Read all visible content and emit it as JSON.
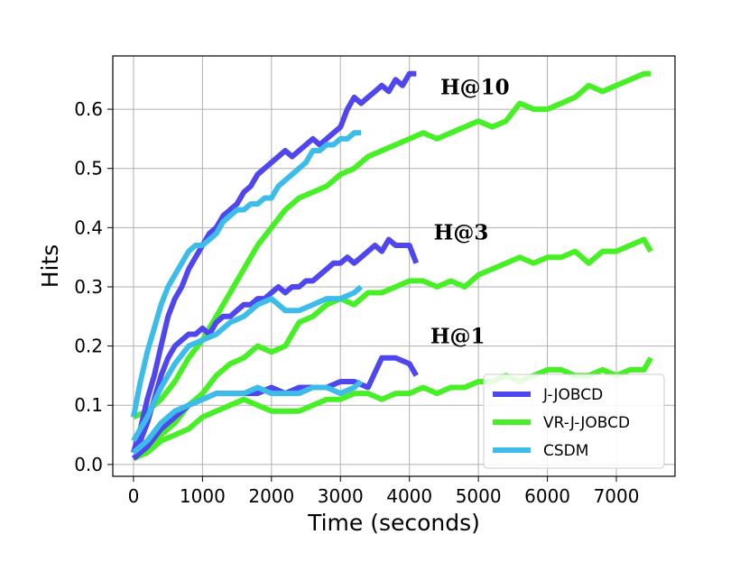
{
  "chart_data": {
    "type": "line",
    "xlabel": "Time (seconds)",
    "ylabel": "Hits",
    "xlim": [
      -300,
      7850
    ],
    "ylim": [
      -0.02,
      0.69
    ],
    "xticks": [
      0,
      1000,
      2000,
      3000,
      4000,
      5000,
      6000,
      7000
    ],
    "yticks": [
      0.0,
      0.1,
      0.2,
      0.3,
      0.4,
      0.5,
      0.6
    ],
    "xtick_labels": [
      "0",
      "1000",
      "2000",
      "3000",
      "4000",
      "5000",
      "6000",
      "7000"
    ],
    "ytick_labels": [
      "0.0",
      "0.1",
      "0.2",
      "0.3",
      "0.4",
      "0.5",
      "0.6"
    ],
    "grid": true,
    "legend_position": "lower-right",
    "legend": [
      "J-JOBCD",
      "VR-J-JOBCD",
      "CSDM"
    ],
    "colors": {
      "J-JOBCD": "#5046f0",
      "VR-J-JOBCD": "#46f024",
      "CSDM": "#3cbce8"
    },
    "annotations": [
      {
        "text": "H@10",
        "x": 4950,
        "y": 0.625
      },
      {
        "text": "H@3",
        "x": 4750,
        "y": 0.38
      },
      {
        "text": "H@1",
        "x": 4700,
        "y": 0.205
      }
    ],
    "series": [
      {
        "name": "J-JOBCD",
        "metric": "H@10",
        "x": [
          0,
          100,
          200,
          300,
          400,
          500,
          600,
          700,
          800,
          900,
          1000,
          1100,
          1200,
          1300,
          1400,
          1500,
          1600,
          1700,
          1800,
          1900,
          2000,
          2100,
          2200,
          2300,
          2400,
          2500,
          2600,
          2700,
          2800,
          2900,
          3000,
          3100,
          3200,
          3300,
          3400,
          3500,
          3600,
          3700,
          3800,
          3900,
          4000,
          4100
        ],
        "y": [
          0.02,
          0.06,
          0.11,
          0.15,
          0.2,
          0.25,
          0.28,
          0.3,
          0.33,
          0.35,
          0.37,
          0.39,
          0.4,
          0.42,
          0.43,
          0.44,
          0.46,
          0.47,
          0.49,
          0.5,
          0.51,
          0.52,
          0.53,
          0.52,
          0.53,
          0.54,
          0.55,
          0.54,
          0.55,
          0.56,
          0.57,
          0.6,
          0.62,
          0.61,
          0.62,
          0.63,
          0.64,
          0.63,
          0.65,
          0.64,
          0.66,
          0.66
        ]
      },
      {
        "name": "VR-J-JOBCD",
        "metric": "H@10",
        "x": [
          0,
          200,
          400,
          600,
          800,
          1000,
          1200,
          1400,
          1600,
          1800,
          2000,
          2200,
          2400,
          2600,
          2800,
          3000,
          3200,
          3400,
          3600,
          3800,
          4000,
          4200,
          4400,
          4600,
          4800,
          5000,
          5200,
          5400,
          5600,
          5800,
          6000,
          6200,
          6400,
          6600,
          6800,
          7000,
          7200,
          7400,
          7500
        ],
        "y": [
          0.08,
          0.09,
          0.11,
          0.14,
          0.18,
          0.21,
          0.25,
          0.29,
          0.33,
          0.37,
          0.4,
          0.43,
          0.45,
          0.46,
          0.47,
          0.49,
          0.5,
          0.52,
          0.53,
          0.54,
          0.55,
          0.56,
          0.55,
          0.56,
          0.57,
          0.58,
          0.57,
          0.58,
          0.61,
          0.6,
          0.6,
          0.61,
          0.62,
          0.64,
          0.63,
          0.64,
          0.65,
          0.66,
          0.66
        ]
      },
      {
        "name": "CSDM",
        "metric": "H@10",
        "x": [
          0,
          100,
          200,
          300,
          400,
          500,
          600,
          700,
          800,
          900,
          1000,
          1100,
          1200,
          1300,
          1400,
          1500,
          1600,
          1700,
          1800,
          1900,
          2000,
          2100,
          2200,
          2300,
          2400,
          2500,
          2600,
          2700,
          2800,
          2900,
          3000,
          3100,
          3200,
          3300
        ],
        "y": [
          0.08,
          0.14,
          0.19,
          0.23,
          0.27,
          0.3,
          0.32,
          0.34,
          0.36,
          0.37,
          0.37,
          0.38,
          0.39,
          0.41,
          0.42,
          0.43,
          0.43,
          0.44,
          0.44,
          0.45,
          0.45,
          0.47,
          0.48,
          0.49,
          0.5,
          0.51,
          0.53,
          0.53,
          0.54,
          0.54,
          0.55,
          0.55,
          0.56,
          0.56
        ]
      },
      {
        "name": "J-JOBCD",
        "metric": "H@3",
        "x": [
          0,
          100,
          200,
          300,
          400,
          500,
          600,
          700,
          800,
          900,
          1000,
          1100,
          1200,
          1300,
          1400,
          1500,
          1600,
          1700,
          1800,
          1900,
          2000,
          2100,
          2200,
          2300,
          2400,
          2500,
          2600,
          2700,
          2800,
          2900,
          3000,
          3100,
          3200,
          3300,
          3400,
          3500,
          3600,
          3700,
          3800,
          3900,
          4000,
          4100
        ],
        "y": [
          0.02,
          0.04,
          0.07,
          0.11,
          0.15,
          0.18,
          0.2,
          0.21,
          0.22,
          0.22,
          0.23,
          0.22,
          0.24,
          0.25,
          0.25,
          0.26,
          0.27,
          0.27,
          0.28,
          0.28,
          0.29,
          0.3,
          0.29,
          0.3,
          0.3,
          0.31,
          0.31,
          0.32,
          0.33,
          0.34,
          0.34,
          0.35,
          0.34,
          0.35,
          0.36,
          0.37,
          0.36,
          0.38,
          0.37,
          0.37,
          0.37,
          0.34
        ]
      },
      {
        "name": "VR-J-JOBCD",
        "metric": "H@3",
        "x": [
          0,
          200,
          400,
          600,
          800,
          1000,
          1200,
          1400,
          1600,
          1800,
          2000,
          2200,
          2400,
          2600,
          2800,
          3000,
          3200,
          3400,
          3600,
          3800,
          4000,
          4200,
          4400,
          4600,
          4800,
          5000,
          5200,
          5400,
          5600,
          5800,
          6000,
          6200,
          6400,
          6600,
          6800,
          7000,
          7200,
          7400,
          7500
        ],
        "y": [
          0.01,
          0.03,
          0.05,
          0.07,
          0.1,
          0.12,
          0.15,
          0.17,
          0.18,
          0.2,
          0.19,
          0.2,
          0.24,
          0.25,
          0.27,
          0.28,
          0.27,
          0.29,
          0.29,
          0.3,
          0.31,
          0.31,
          0.3,
          0.31,
          0.3,
          0.32,
          0.33,
          0.34,
          0.35,
          0.34,
          0.35,
          0.35,
          0.36,
          0.34,
          0.36,
          0.36,
          0.37,
          0.38,
          0.36
        ]
      },
      {
        "name": "CSDM",
        "metric": "H@3",
        "x": [
          0,
          200,
          400,
          600,
          800,
          1000,
          1200,
          1400,
          1600,
          1800,
          2000,
          2200,
          2400,
          2600,
          2800,
          3000,
          3200,
          3300
        ],
        "y": [
          0.04,
          0.08,
          0.13,
          0.17,
          0.2,
          0.21,
          0.22,
          0.24,
          0.25,
          0.27,
          0.28,
          0.26,
          0.26,
          0.27,
          0.28,
          0.28,
          0.29,
          0.3
        ]
      },
      {
        "name": "J-JOBCD",
        "metric": "H@1",
        "x": [
          0,
          200,
          400,
          600,
          800,
          1000,
          1200,
          1400,
          1600,
          1800,
          2000,
          2200,
          2400,
          2600,
          2800,
          3000,
          3200,
          3400,
          3600,
          3800,
          4000,
          4100
        ],
        "y": [
          0.01,
          0.03,
          0.06,
          0.08,
          0.1,
          0.11,
          0.12,
          0.12,
          0.12,
          0.12,
          0.13,
          0.12,
          0.13,
          0.13,
          0.13,
          0.14,
          0.14,
          0.13,
          0.18,
          0.18,
          0.17,
          0.15
        ]
      },
      {
        "name": "VR-J-JOBCD",
        "metric": "H@1",
        "x": [
          0,
          200,
          400,
          600,
          800,
          1000,
          1200,
          1400,
          1600,
          1800,
          2000,
          2200,
          2400,
          2600,
          2800,
          3000,
          3200,
          3400,
          3600,
          3800,
          4000,
          4200,
          4400,
          4600,
          4800,
          5000,
          5200,
          5400,
          5600,
          5800,
          6000,
          6200,
          6400,
          6600,
          6800,
          7000,
          7200,
          7400,
          7500
        ],
        "y": [
          0.01,
          0.02,
          0.04,
          0.05,
          0.06,
          0.08,
          0.09,
          0.1,
          0.11,
          0.1,
          0.09,
          0.09,
          0.09,
          0.1,
          0.11,
          0.11,
          0.12,
          0.12,
          0.11,
          0.12,
          0.12,
          0.13,
          0.12,
          0.13,
          0.13,
          0.14,
          0.14,
          0.15,
          0.14,
          0.15,
          0.16,
          0.16,
          0.15,
          0.15,
          0.16,
          0.15,
          0.16,
          0.16,
          0.18
        ]
      },
      {
        "name": "CSDM",
        "metric": "H@1",
        "x": [
          0,
          200,
          400,
          600,
          800,
          1000,
          1200,
          1400,
          1600,
          1800,
          2000,
          2200,
          2400,
          2600,
          2800,
          3000,
          3200,
          3300
        ],
        "y": [
          0.02,
          0.04,
          0.07,
          0.09,
          0.1,
          0.11,
          0.12,
          0.12,
          0.12,
          0.13,
          0.12,
          0.12,
          0.12,
          0.13,
          0.13,
          0.12,
          0.13,
          0.14
        ]
      }
    ]
  }
}
